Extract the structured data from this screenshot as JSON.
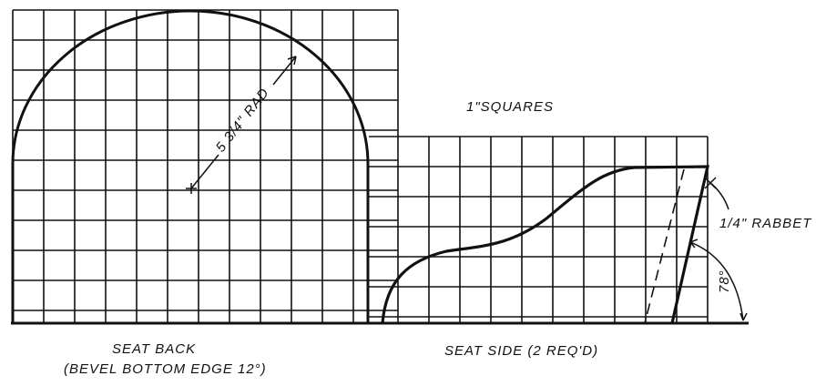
{
  "diagram": {
    "title": "1\"SQUARES",
    "seat_back_label": "SEAT BACK",
    "seat_back_note": "(BEVEL BOTTOM EDGE 12°)",
    "seat_side_label": "SEAT SIDE (2 REQ'D)",
    "radius_label": "5 3/4\" RAD",
    "rabbet_label": "1/4\" RABBET",
    "angle_label": "78°",
    "grid_unit": "1\" squares",
    "colors": {
      "ink": "#111111",
      "paper": "#ffffff"
    }
  }
}
